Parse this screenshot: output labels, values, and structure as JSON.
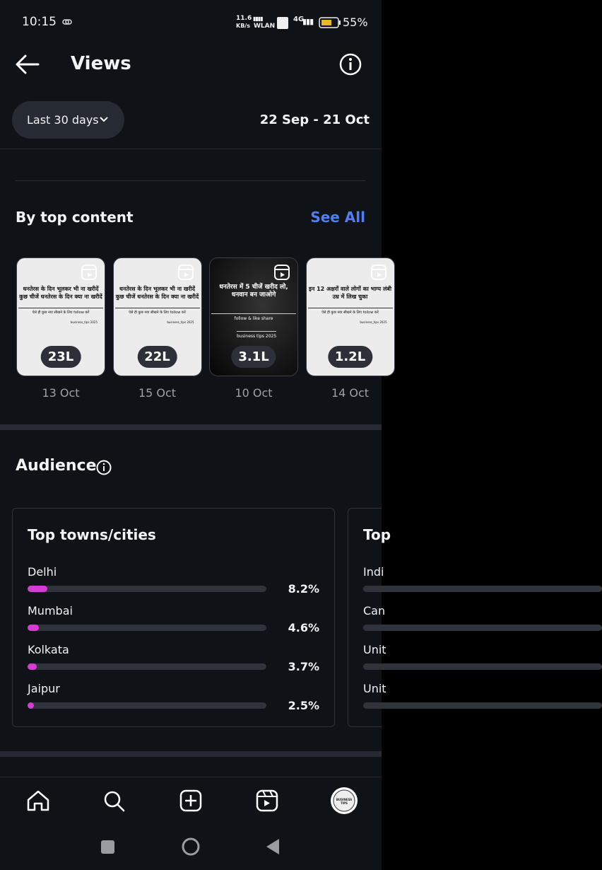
{
  "status_bar": {
    "time": "10:15",
    "speed": "11.6",
    "speed_unit": "KB/s",
    "network": "WLAN",
    "network_type": "4G",
    "battery": "55%"
  },
  "header": {
    "title": "Views"
  },
  "filter": {
    "range": "Last 30 days",
    "dates": "22 Sep - 21 Oct"
  },
  "top_content": {
    "title": "By top content",
    "see_all": "See All",
    "items": [
      {
        "headline": "धनतेरस के दिन भूलकर भी ना खरीदें कुछ चीजें धनतेरस के दिन क्या ना खरीदें",
        "subline": "ऐसे ही कुछ नया सीखने के लिए follow करें",
        "footer": "business_tips 2025",
        "count": "23L",
        "date": "13 Oct"
      },
      {
        "headline": "धनतेरस के दिन भूलकर भी ना खरीदें कुछ चीजें धनतेरस के दिन क्या ना खरीदें",
        "subline": "ऐसे ही कुछ नया सीखने के लिए follow करें",
        "footer": "business_tips 2025",
        "count": "22L",
        "date": "15 Oct"
      },
      {
        "headline": "धनतेरस में 5 चीजें खरीद लो, धनवान बन जाओगे",
        "subline": "follow & like share",
        "footer": "business tips 2025",
        "count": "3.1L",
        "date": "10 Oct"
      },
      {
        "headline": "इन 12 अक्षरों वाले लोगों का भाग्य लंबी उम्र में लिख चुका",
        "subline": "ऐसे ही कुछ नया सीखने के लिए follow करें",
        "footer": "business_tips 2025",
        "count": "1.2L",
        "date": "14 Oct"
      }
    ]
  },
  "audience": {
    "title": "Audience",
    "cards": [
      {
        "title": "Top towns/cities",
        "rows": [
          {
            "name": "Delhi",
            "value": 8.2,
            "label": "8.2%"
          },
          {
            "name": "Mumbai",
            "value": 4.6,
            "label": "4.6%"
          },
          {
            "name": "Kolkata",
            "value": 3.7,
            "label": "3.7%"
          },
          {
            "name": "Jaipur",
            "value": 2.5,
            "label": "2.5%"
          }
        ]
      },
      {
        "title": "Top",
        "rows": [
          {
            "name": "Indi"
          },
          {
            "name": "Can"
          },
          {
            "name": "Unit"
          },
          {
            "name": "Unit"
          }
        ]
      }
    ]
  },
  "nav": {
    "avatar": "BUSINESS TIPS"
  }
}
